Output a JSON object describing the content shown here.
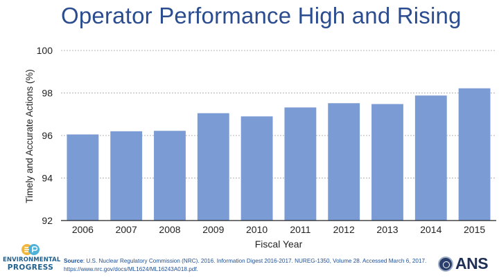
{
  "title": "Operator Performance High and Rising",
  "chart_data": {
    "type": "bar",
    "categories": [
      "2006",
      "2007",
      "2008",
      "2009",
      "2010",
      "2011",
      "2012",
      "2013",
      "2014",
      "2015"
    ],
    "values": [
      96.05,
      96.2,
      96.22,
      97.05,
      96.9,
      97.32,
      97.52,
      97.48,
      97.88,
      98.22
    ],
    "xlabel": "Fiscal Year",
    "ylabel": "Timely and Accurate Actions (%)",
    "ylim": [
      92,
      100
    ],
    "yticks": [
      92,
      94,
      96,
      98,
      100
    ],
    "grid": true,
    "bar_color": "#7b9bd4",
    "grid_color": "#9a9a9a",
    "axis_color": "#222222"
  },
  "footer": {
    "source_label": "Source",
    "source_text": ": U.S. Nuclear Regulatory Commission (NRC). 2016. Information Digest 2016-2017. NUREG-1350, Volume 28. Accessed March 6, 2017. https://www.nrc.gov/docs/ML1624/ML16243A018.pdf.",
    "logo_left_line1": "ENVIRONMENTAL",
    "logo_left_line2": "PROGRESS",
    "logo_right_text": "ANS"
  }
}
